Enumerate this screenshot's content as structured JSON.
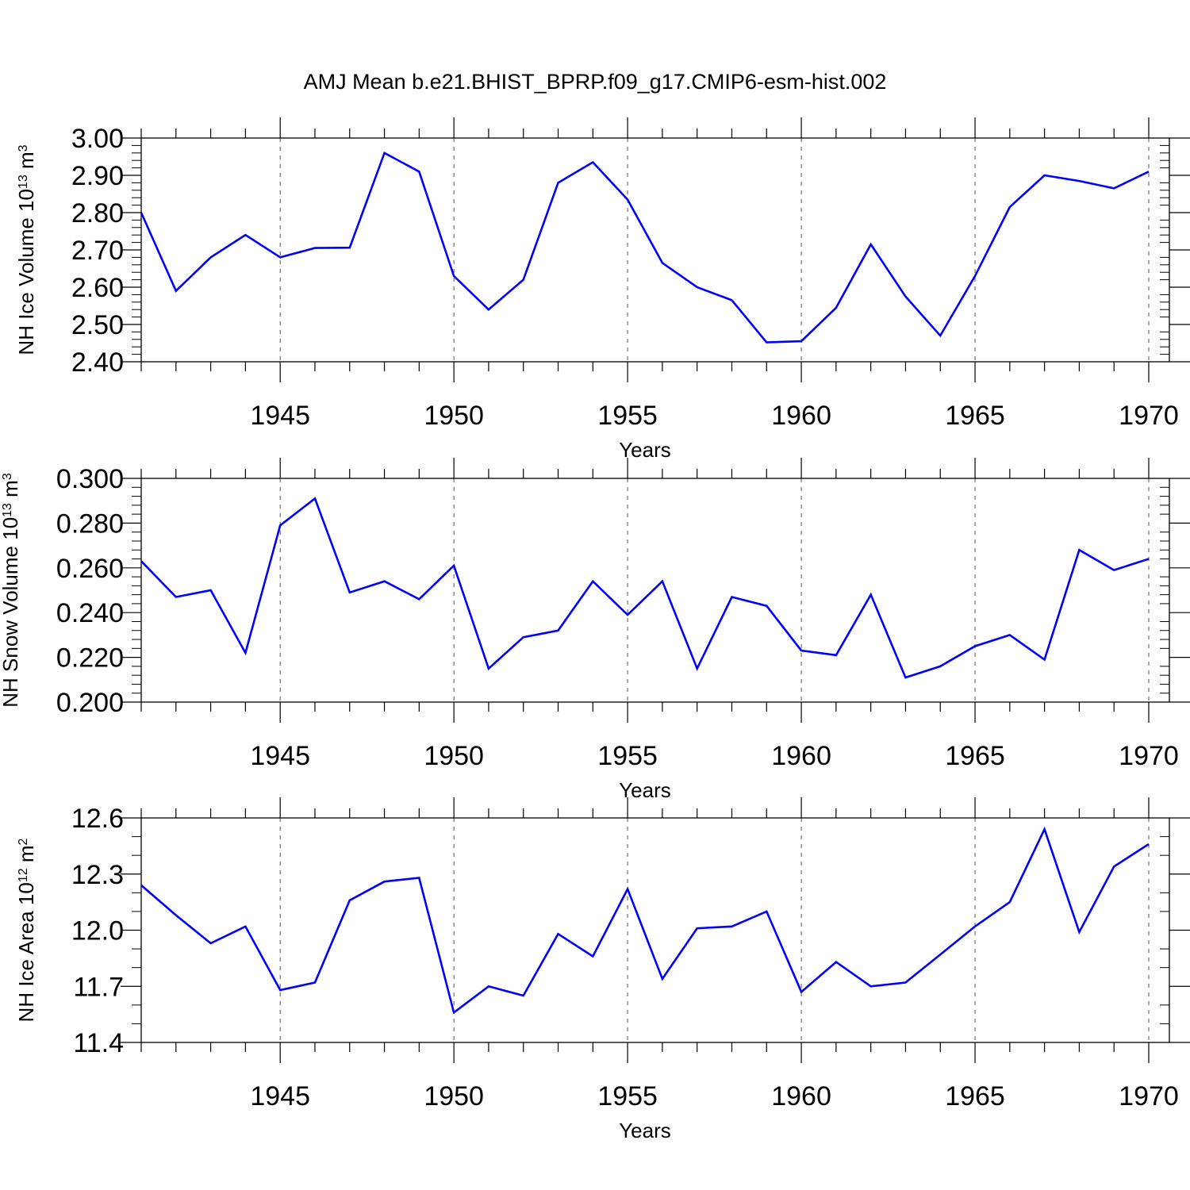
{
  "title": "AMJ Mean b.e21.BHIST_BPRP.f09_g17.CMIP6-esm-hist.002",
  "colors": {
    "line": "#0000ff",
    "axis": "#000000",
    "grid": "#555555"
  },
  "chart_data": [
    {
      "type": "line",
      "title": "AMJ Mean b.e21.BHIST_BPRP.f09_g17.CMIP6-esm-hist.002",
      "xlabel": "Years",
      "ylabel": {
        "base": "NH Ice Volume 10",
        "exp": "13",
        "unit": " m",
        "unit_exp": "3"
      },
      "xlim": [
        1941,
        1970
      ],
      "ylim": [
        2.4,
        3.0
      ],
      "yticks": [
        "2.40",
        "2.50",
        "2.60",
        "2.70",
        "2.80",
        "2.90",
        "3.00"
      ],
      "xticks": [
        "1945",
        "1950",
        "1955",
        "1960",
        "1965",
        "1970"
      ],
      "grid": "vertical dashed at major x ticks",
      "series": [
        {
          "name": "NH Ice Volume",
          "x": [
            1941,
            1942,
            1943,
            1944,
            1945,
            1946,
            1947,
            1948,
            1949,
            1950,
            1951,
            1952,
            1953,
            1954,
            1955,
            1956,
            1957,
            1958,
            1959,
            1960,
            1961,
            1962,
            1963,
            1964,
            1965,
            1966,
            1967,
            1968,
            1969,
            1970
          ],
          "values": [
            2.8,
            2.59,
            2.68,
            2.74,
            2.68,
            2.705,
            2.706,
            2.96,
            2.91,
            2.63,
            2.54,
            2.62,
            2.88,
            2.935,
            2.835,
            2.665,
            2.6,
            2.565,
            2.452,
            2.455,
            2.545,
            2.715,
            2.575,
            2.47,
            2.63,
            2.815,
            2.9,
            2.885,
            2.865,
            2.91
          ]
        }
      ]
    },
    {
      "type": "line",
      "xlabel": "Years",
      "ylabel": {
        "base": "NH Snow Volume 10",
        "exp": "13",
        "unit": " m",
        "unit_exp": "3"
      },
      "xlim": [
        1941,
        1970
      ],
      "ylim": [
        0.2,
        0.3
      ],
      "yticks": [
        "0.200",
        "0.220",
        "0.240",
        "0.260",
        "0.280",
        "0.300"
      ],
      "xticks": [
        "1945",
        "1950",
        "1955",
        "1960",
        "1965",
        "1970"
      ],
      "grid": "vertical dashed at major x ticks",
      "series": [
        {
          "name": "NH Snow Volume",
          "x": [
            1941,
            1942,
            1943,
            1944,
            1945,
            1946,
            1947,
            1948,
            1949,
            1950,
            1951,
            1952,
            1953,
            1954,
            1955,
            1956,
            1957,
            1958,
            1959,
            1960,
            1961,
            1962,
            1963,
            1964,
            1965,
            1966,
            1967,
            1968,
            1969,
            1970
          ],
          "values": [
            0.263,
            0.247,
            0.25,
            0.222,
            0.279,
            0.291,
            0.249,
            0.254,
            0.246,
            0.261,
            0.215,
            0.229,
            0.232,
            0.254,
            0.239,
            0.254,
            0.215,
            0.247,
            0.243,
            0.223,
            0.221,
            0.248,
            0.211,
            0.216,
            0.225,
            0.23,
            0.219,
            0.268,
            0.259,
            0.264
          ]
        }
      ]
    },
    {
      "type": "line",
      "xlabel": "Years",
      "ylabel": {
        "base": "NH Ice Area 10",
        "exp": "12",
        "unit": " m",
        "unit_exp": "2"
      },
      "xlim": [
        1941,
        1970
      ],
      "ylim": [
        11.4,
        12.6
      ],
      "yticks": [
        "11.4",
        "11.7",
        "12.0",
        "12.3",
        "12.6"
      ],
      "xticks": [
        "1945",
        "1950",
        "1955",
        "1960",
        "1965",
        "1970"
      ],
      "grid": "vertical dashed at major x ticks",
      "series": [
        {
          "name": "NH Ice Area",
          "x": [
            1941,
            1942,
            1943,
            1944,
            1945,
            1946,
            1947,
            1948,
            1949,
            1950,
            1951,
            1952,
            1953,
            1954,
            1955,
            1956,
            1957,
            1958,
            1959,
            1960,
            1961,
            1962,
            1963,
            1964,
            1965,
            1966,
            1967,
            1968,
            1969,
            1970
          ],
          "values": [
            12.24,
            12.08,
            11.93,
            12.02,
            11.68,
            11.72,
            12.16,
            12.26,
            12.28,
            11.56,
            11.7,
            11.65,
            11.98,
            11.86,
            12.22,
            11.74,
            12.01,
            12.02,
            12.1,
            11.67,
            11.83,
            11.7,
            11.72,
            11.87,
            12.02,
            12.15,
            12.54,
            11.99,
            12.34,
            12.46
          ]
        }
      ]
    }
  ]
}
